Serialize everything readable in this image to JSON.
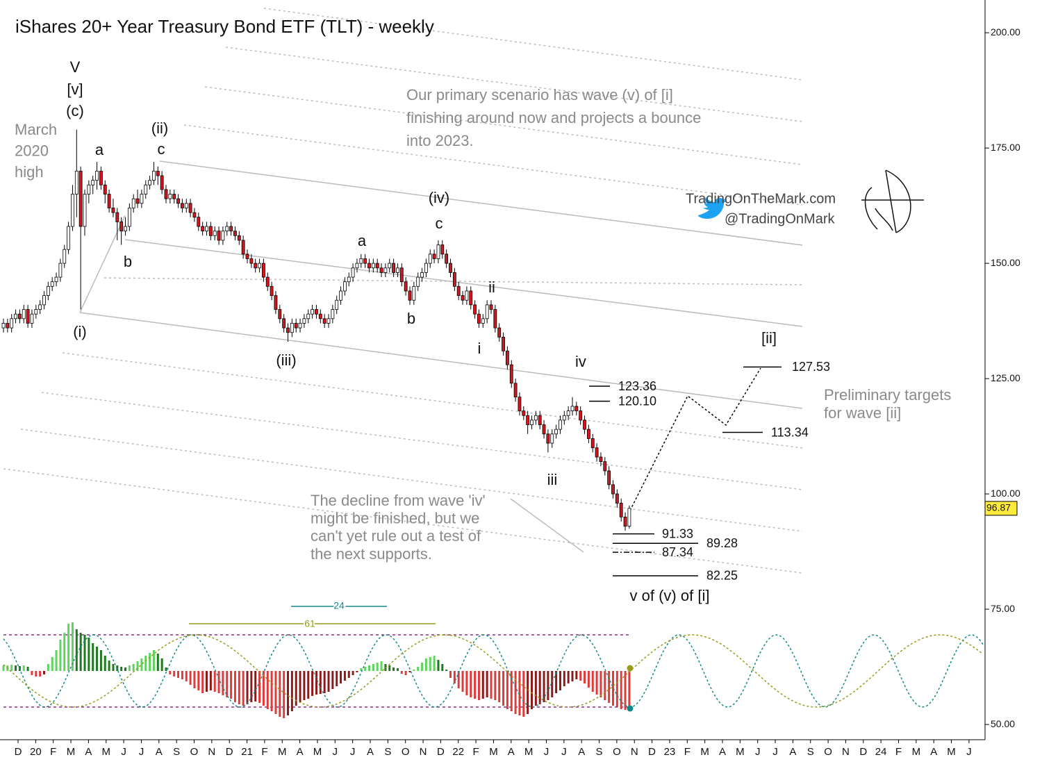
{
  "chart_data": {
    "type": "candlestick",
    "title": "iShares 20+ Year Treasury Bond ETF (TLT) - weekly",
    "ylim": [
      46.7,
      207.1
    ],
    "yticks": [
      {
        "value": 50,
        "label": "50.00"
      },
      {
        "value": 75,
        "label": "75.00"
      },
      {
        "value": 100,
        "label": "100.00"
      },
      {
        "value": 125,
        "label": "125.00"
      },
      {
        "value": 150,
        "label": "150.00"
      },
      {
        "value": 175,
        "label": "175.00"
      },
      {
        "value": 200,
        "label": "200.00"
      }
    ],
    "last_price": 96.87,
    "xlabels": [
      "D",
      "20",
      "F",
      "M",
      "A",
      "M",
      "J",
      "J",
      "A",
      "S",
      "O",
      "N",
      "D",
      "21",
      "F",
      "M",
      "A",
      "M",
      "J",
      "J",
      "A",
      "S",
      "O",
      "N",
      "D",
      "22",
      "F",
      "M",
      "A",
      "M",
      "J",
      "J",
      "A",
      "S",
      "O",
      "N",
      "D",
      "23",
      "F",
      "M",
      "A",
      "M",
      "J",
      "J",
      "A",
      "S",
      "O",
      "N",
      "D",
      "24",
      "F",
      "M",
      "A",
      "M",
      "J"
    ],
    "ohlc": [
      [
        136,
        138,
        135,
        137
      ],
      [
        137,
        138,
        135,
        136
      ],
      [
        136,
        139,
        135,
        138
      ],
      [
        138,
        140,
        137,
        139
      ],
      [
        139,
        140,
        137,
        138
      ],
      [
        138,
        141,
        137,
        140
      ],
      [
        140,
        141,
        136,
        137
      ],
      [
        137,
        140,
        136,
        139
      ],
      [
        139,
        141,
        138,
        140
      ],
      [
        140,
        142,
        139,
        141
      ],
      [
        141,
        144,
        140,
        143
      ],
      [
        143,
        146,
        142,
        145
      ],
      [
        145,
        147,
        144,
        146
      ],
      [
        146,
        148,
        145,
        147
      ],
      [
        147,
        151,
        146,
        150
      ],
      [
        150,
        154,
        149,
        153
      ],
      [
        153,
        159,
        152,
        158
      ],
      [
        158,
        167,
        157,
        165
      ],
      [
        165,
        179,
        160,
        170
      ],
      [
        170,
        171,
        140,
        158
      ],
      [
        158,
        166,
        156,
        165
      ],
      [
        165,
        168,
        163,
        167
      ],
      [
        167,
        169,
        165,
        168
      ],
      [
        168,
        172,
        166,
        170
      ],
      [
        170,
        171,
        166,
        167
      ],
      [
        167,
        168,
        163,
        165
      ],
      [
        165,
        166,
        161,
        162
      ],
      [
        162,
        164,
        160,
        161
      ],
      [
        161,
        162,
        155,
        159
      ],
      [
        159,
        160,
        154,
        157
      ],
      [
        157,
        160,
        156,
        158
      ],
      [
        158,
        163,
        157,
        162
      ],
      [
        162,
        165,
        161,
        164
      ],
      [
        164,
        166,
        162,
        163
      ],
      [
        163,
        166,
        162,
        165
      ],
      [
        165,
        168,
        164,
        167
      ],
      [
        167,
        169,
        166,
        168
      ],
      [
        168,
        172,
        167,
        170
      ],
      [
        170,
        171,
        167,
        169
      ],
      [
        169,
        170,
        165,
        166
      ],
      [
        166,
        167,
        163,
        164
      ],
      [
        164,
        166,
        163,
        165
      ],
      [
        165,
        166,
        163,
        164
      ],
      [
        164,
        165,
        162,
        163
      ],
      [
        163,
        164,
        161,
        162
      ],
      [
        162,
        164,
        161,
        163
      ],
      [
        163,
        164,
        160,
        161
      ],
      [
        161,
        162,
        159,
        160
      ],
      [
        160,
        161,
        157,
        158
      ],
      [
        158,
        159,
        156,
        157
      ],
      [
        157,
        159,
        156,
        158
      ],
      [
        158,
        159,
        155,
        156
      ],
      [
        156,
        158,
        155,
        157
      ],
      [
        157,
        158,
        154,
        155
      ],
      [
        155,
        158,
        154,
        157
      ],
      [
        157,
        159,
        156,
        158
      ],
      [
        158,
        159,
        156,
        157
      ],
      [
        157,
        158,
        155,
        156
      ],
      [
        156,
        157,
        154,
        155
      ],
      [
        155,
        156,
        151,
        152
      ],
      [
        152,
        153,
        150,
        151
      ],
      [
        151,
        152,
        149,
        150
      ],
      [
        150,
        151,
        148,
        149
      ],
      [
        149,
        151,
        148,
        150
      ],
      [
        150,
        151,
        146,
        147
      ],
      [
        147,
        148,
        144,
        145
      ],
      [
        145,
        146,
        142,
        143
      ],
      [
        143,
        144,
        139,
        140
      ],
      [
        140,
        141,
        137,
        138
      ],
      [
        138,
        139,
        135,
        136
      ],
      [
        136,
        137,
        133,
        135
      ],
      [
        135,
        138,
        134,
        137
      ],
      [
        137,
        138,
        135,
        136
      ],
      [
        136,
        138,
        135,
        137
      ],
      [
        137,
        139,
        136,
        138
      ],
      [
        138,
        140,
        137,
        139
      ],
      [
        139,
        141,
        138,
        140
      ],
      [
        140,
        141,
        138,
        139
      ],
      [
        139,
        140,
        137,
        138
      ],
      [
        138,
        139,
        136,
        137
      ],
      [
        137,
        139,
        136,
        138
      ],
      [
        138,
        141,
        137,
        140
      ],
      [
        140,
        143,
        139,
        142
      ],
      [
        142,
        145,
        141,
        144
      ],
      [
        144,
        147,
        143,
        146
      ],
      [
        146,
        148,
        145,
        147
      ],
      [
        147,
        150,
        146,
        149
      ],
      [
        149,
        151,
        148,
        150
      ],
      [
        150,
        152,
        149,
        151
      ],
      [
        151,
        152,
        149,
        150
      ],
      [
        150,
        151,
        148,
        149
      ],
      [
        149,
        151,
        148,
        150
      ],
      [
        150,
        151,
        148,
        149
      ],
      [
        149,
        150,
        147,
        148
      ],
      [
        148,
        150,
        147,
        149
      ],
      [
        149,
        151,
        148,
        150
      ],
      [
        150,
        151,
        147,
        148
      ],
      [
        148,
        150,
        147,
        149
      ],
      [
        149,
        150,
        145,
        146
      ],
      [
        146,
        147,
        143,
        144
      ],
      [
        144,
        145,
        141,
        142
      ],
      [
        142,
        146,
        141,
        145
      ],
      [
        145,
        148,
        144,
        147
      ],
      [
        147,
        149,
        146,
        148
      ],
      [
        148,
        151,
        147,
        150
      ],
      [
        150,
        153,
        149,
        152
      ],
      [
        152,
        153,
        150,
        151
      ],
      [
        151,
        155,
        150,
        154
      ],
      [
        154,
        155,
        151,
        152
      ],
      [
        152,
        153,
        149,
        150
      ],
      [
        150,
        151,
        147,
        148
      ],
      [
        148,
        149,
        144,
        145
      ],
      [
        145,
        146,
        142,
        143
      ],
      [
        143,
        144,
        141,
        142
      ],
      [
        142,
        145,
        141,
        144
      ],
      [
        144,
        145,
        140,
        141
      ],
      [
        141,
        142,
        138,
        139
      ],
      [
        139,
        140,
        136,
        137
      ],
      [
        137,
        139,
        136,
        138
      ],
      [
        138,
        142,
        137,
        141
      ],
      [
        141,
        142,
        139,
        140
      ],
      [
        140,
        141,
        135,
        136
      ],
      [
        136,
        137,
        133,
        134
      ],
      [
        134,
        135,
        130,
        131
      ],
      [
        131,
        132,
        127,
        128
      ],
      [
        128,
        129,
        123,
        124
      ],
      [
        124,
        125,
        120,
        121
      ],
      [
        121,
        122,
        117,
        118
      ],
      [
        118,
        119,
        116,
        117
      ],
      [
        117,
        118,
        113,
        115
      ],
      [
        115,
        117,
        114,
        116
      ],
      [
        116,
        118,
        115,
        117
      ],
      [
        117,
        118,
        114,
        115
      ],
      [
        115,
        116,
        112,
        113
      ],
      [
        113,
        114,
        109,
        111
      ],
      [
        111,
        114,
        110,
        113
      ],
      [
        113,
        115,
        112,
        114
      ],
      [
        114,
        117,
        113,
        116
      ],
      [
        116,
        118,
        115,
        117
      ],
      [
        117,
        119,
        116,
        118
      ],
      [
        118,
        121,
        117,
        119
      ],
      [
        119,
        120,
        117,
        118
      ],
      [
        118,
        119,
        115,
        116
      ],
      [
        116,
        117,
        113,
        114
      ],
      [
        114,
        115,
        111,
        112
      ],
      [
        112,
        113,
        109,
        110
      ],
      [
        110,
        111,
        107,
        108
      ],
      [
        108,
        109,
        106,
        107
      ],
      [
        107,
        108,
        104,
        105
      ],
      [
        105,
        106,
        101,
        102
      ],
      [
        102,
        103,
        99,
        100
      ],
      [
        100,
        101,
        97,
        98
      ],
      [
        98,
        99,
        94,
        95
      ],
      [
        95,
        96,
        92,
        93
      ],
      [
        93,
        97.5,
        92.5,
        96.87
      ]
    ],
    "histogram": [
      8,
      8,
      9,
      8,
      7,
      8,
      6,
      -6,
      -8,
      -8,
      -5,
      10,
      20,
      30,
      45,
      55,
      68,
      70,
      60,
      55,
      52,
      48,
      40,
      35,
      30,
      22,
      15,
      10,
      8,
      6,
      5,
      8,
      10,
      14,
      18,
      22,
      26,
      30,
      25,
      18,
      5,
      -5,
      -8,
      -10,
      -12,
      -15,
      -20,
      -25,
      -28,
      -32,
      -30,
      -28,
      -30,
      -32,
      -35,
      -38,
      -40,
      -45,
      -48,
      -50,
      -48,
      -45,
      -44,
      -46,
      -50,
      -55,
      -58,
      -62,
      -66,
      -68,
      -64,
      -58,
      -50,
      -45,
      -42,
      -40,
      -36,
      -34,
      -33,
      -32,
      -30,
      -26,
      -22,
      -18,
      -14,
      -10,
      -6,
      -2,
      4,
      6,
      8,
      10,
      12,
      14,
      10,
      8,
      5,
      4,
      -4,
      -6,
      -2,
      2,
      6,
      12,
      18,
      20,
      22,
      16,
      10,
      2,
      -10,
      -18,
      -25,
      -30,
      -35,
      -38,
      -40,
      -42,
      -40,
      -38,
      -40,
      -42,
      -45,
      -50,
      -55,
      -58,
      -62,
      -64,
      -66,
      -62,
      -55,
      -50,
      -48,
      -45,
      -42,
      -38,
      -32,
      -28,
      -22,
      -18,
      -15,
      -12,
      -14,
      -18,
      -24,
      -30,
      -34,
      -38,
      -42,
      -46,
      -50,
      -52,
      -55,
      -56,
      -58
    ],
    "cycles": [
      {
        "period": 24,
        "color": "#138a8a"
      },
      {
        "period": 61,
        "color": "#9a9a1a"
      }
    ],
    "levels": [
      {
        "value": 127.53,
        "label": "127.53"
      },
      {
        "value": 123.36,
        "label": "123.36"
      },
      {
        "value": 120.1,
        "label": "120.10"
      },
      {
        "value": 113.34,
        "label": "113.34"
      },
      {
        "value": 91.33,
        "label": "91.33"
      },
      {
        "value": 89.28,
        "label": "89.28"
      },
      {
        "value": 87.34,
        "label": "87.34"
      },
      {
        "value": 82.25,
        "label": "82.25"
      }
    ],
    "wave_labels": [
      "V",
      "[v]",
      "(c)",
      "a",
      "(ii)",
      "c",
      "b",
      "(i)",
      "(iii)",
      "a",
      "b",
      "(iv)",
      "c",
      "ii",
      "i",
      "iv",
      "iii",
      "[ii]",
      "v of (v) of [i]"
    ],
    "notes": [
      [
        "March",
        "2020",
        "high"
      ],
      [
        "Our primary scenario has wave (v) of [i]",
        "finishing around now and projects a bounce",
        "into 2023."
      ],
      [
        "The decline from wave 'iv'",
        "might be finished, but we",
        "can't yet rule out a test of",
        "the next supports."
      ],
      [
        "Preliminary targets",
        "for wave [ii]"
      ]
    ],
    "brand": [
      "TradingOnTheMark.com",
      "@TradingOnMark"
    ]
  }
}
